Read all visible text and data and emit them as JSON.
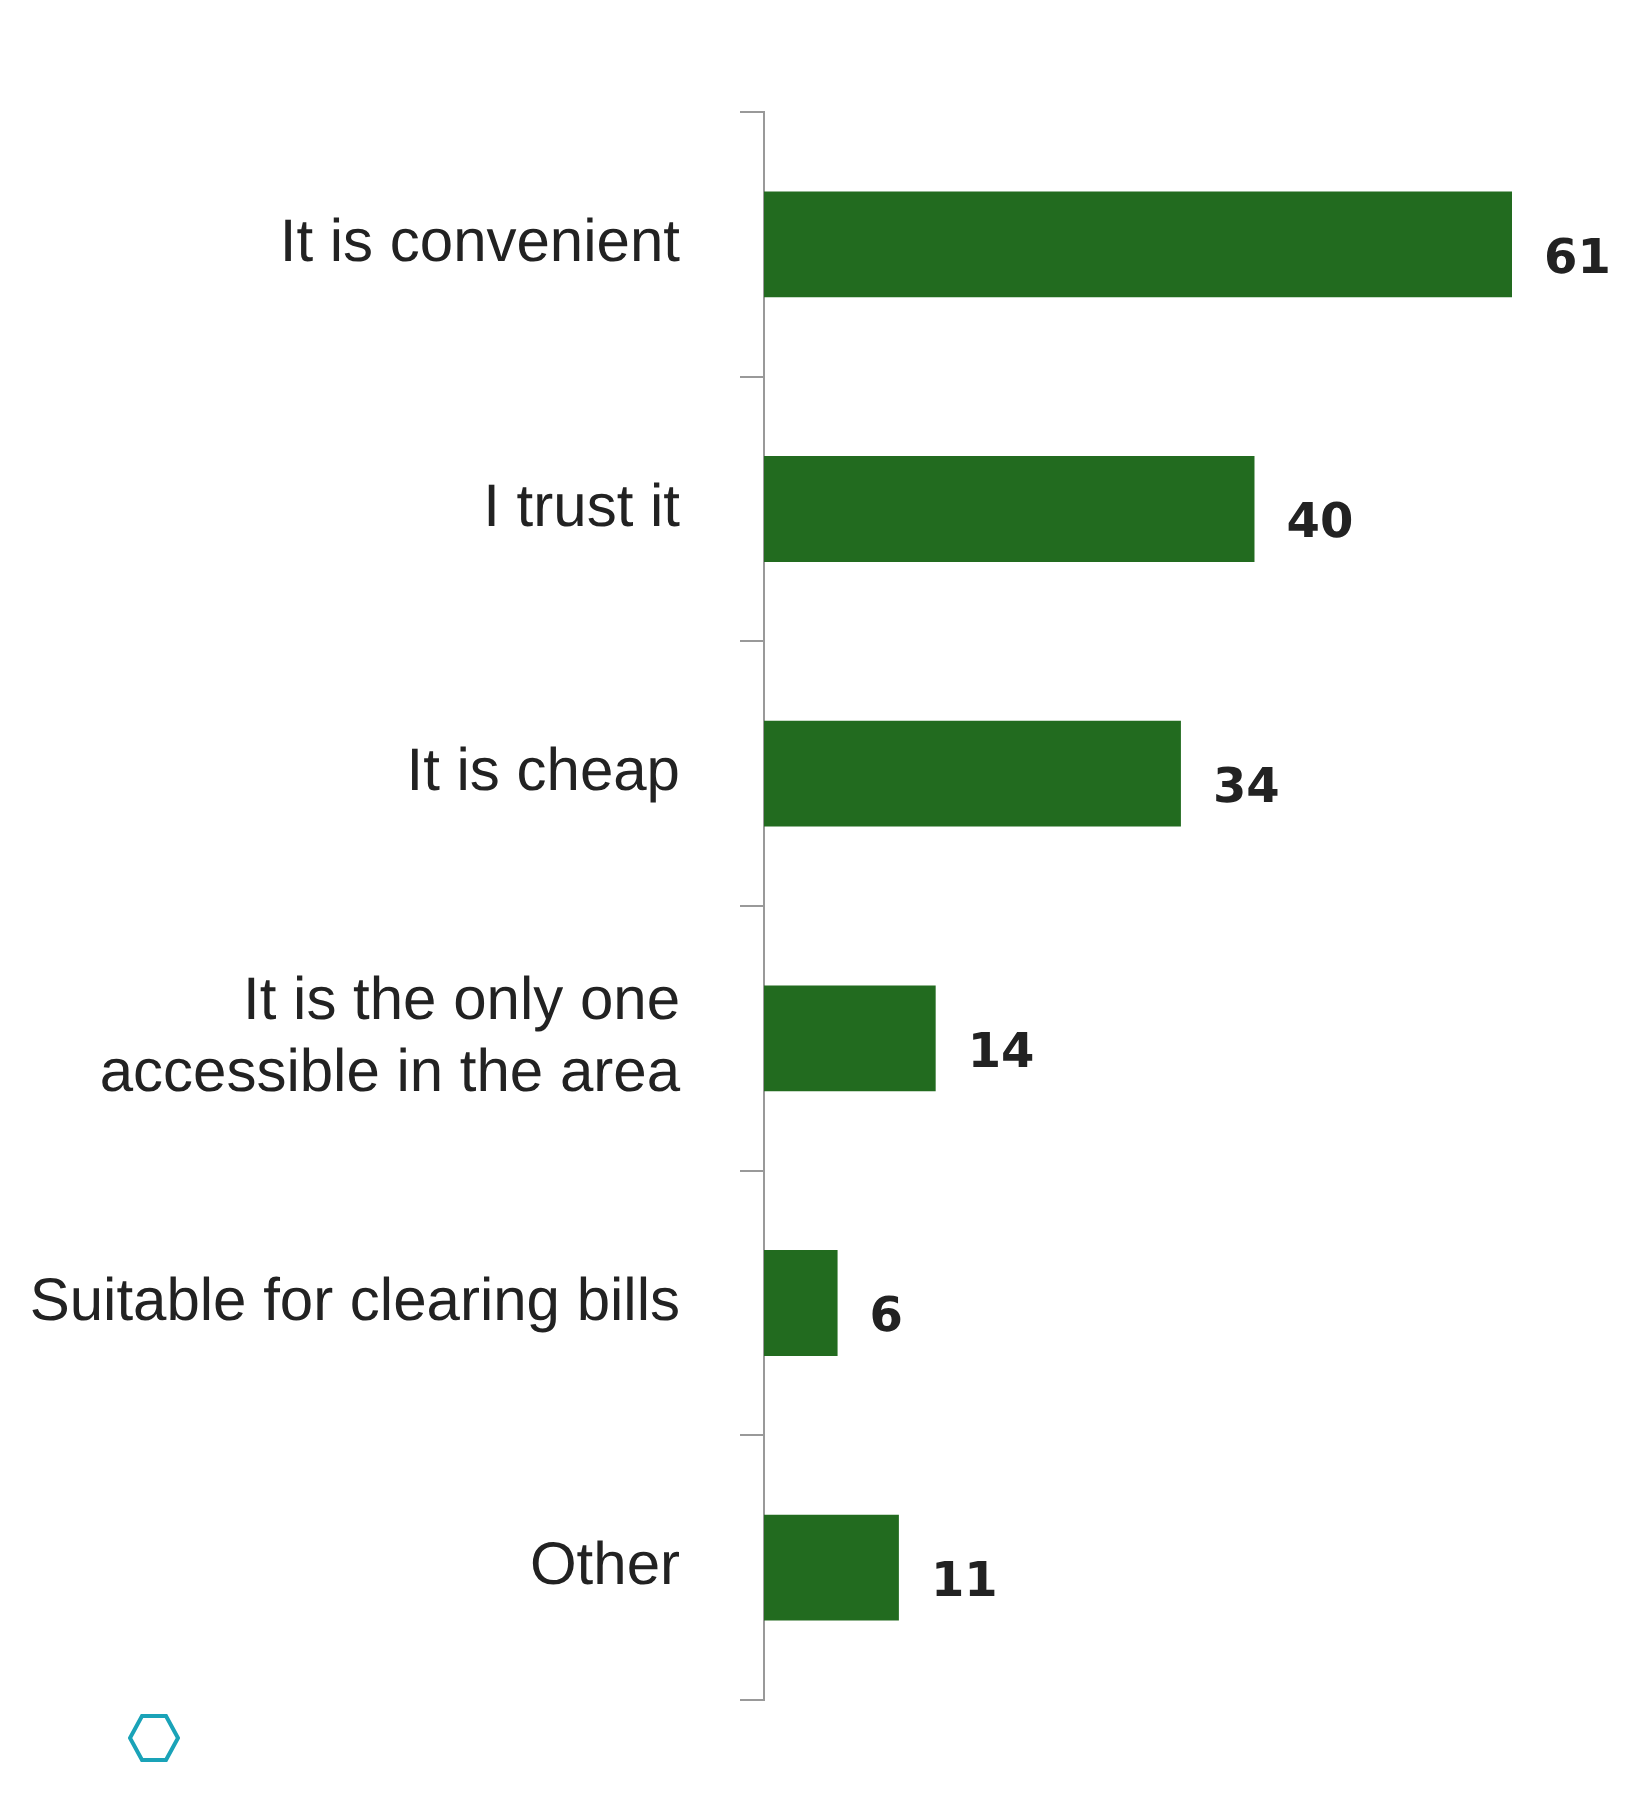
{
  "chart_data": {
    "type": "bar",
    "orientation": "horizontal",
    "categories": [
      "It is convenient",
      "I trust it",
      "It is cheap",
      "It is the only one accessible in the area",
      "Suitable for clearing bills",
      "Other"
    ],
    "values": [
      61,
      40,
      34,
      14,
      6,
      11
    ],
    "color": "#226b1f",
    "data_labels": true,
    "legend": false
  }
}
